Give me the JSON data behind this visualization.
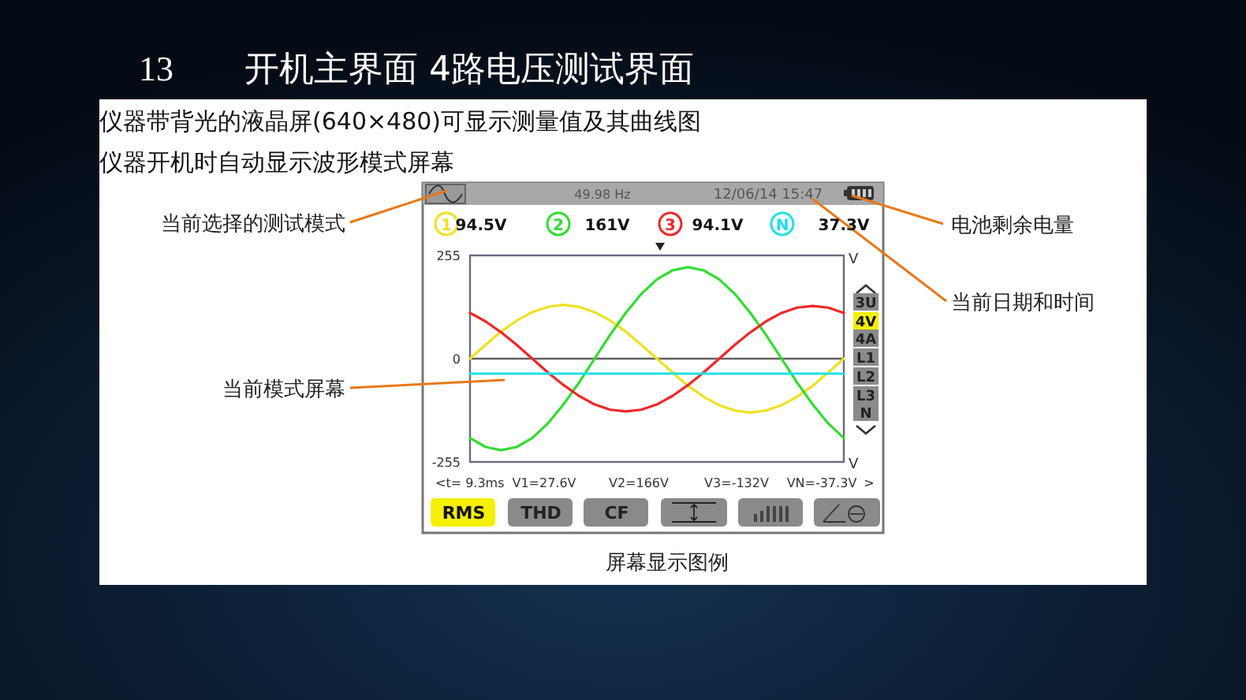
{
  "chart_data": {
    "type": "line",
    "title": "开机主界面 4路电压测试界面",
    "subtitle": "仪器带背光的液晶屏(640×480)可显示测量值及其曲线图",
    "categories": [
      null,
      null,
      null,
      null,
      null,
      null,
      null,
      null,
      null,
      null,
      null,
      null,
      null,
      null,
      null,
      null,
      null,
      null,
      null,
      null,
      null,
      null,
      null,
      null,
      null
    ],
    "ylim": [
      -255,
      255
    ],
    "yticks": [
      -255,
      0,
      255
    ],
    "ylabel": "V",
    "grid": false,
    "legend": "top",
    "marker": "none",
    "line_style": "solid",
    "series": [
      {
        "name": "1",
        "color": "#f0e020",
        "values": [
          0,
          34,
          67,
          94,
          115,
          128,
          133,
          128,
          115,
          94,
          67,
          34,
          0,
          -34,
          -67,
          -94,
          -115,
          -128,
          -133,
          -128,
          -115,
          -94,
          -67,
          -34,
          0
        ]
      },
      {
        "name": "2",
        "color": "#30dd30",
        "values": [
          -196,
          -218,
          -226,
          -218,
          -196,
          -160,
          -113,
          -59,
          0,
          59,
          113,
          160,
          196,
          218,
          226,
          218,
          196,
          160,
          113,
          59,
          0,
          -59,
          -113,
          -160,
          -196
        ]
      },
      {
        "name": "3",
        "color": "#ee2828",
        "values": [
          113,
          92,
          65,
          34,
          0,
          -34,
          -65,
          -92,
          -113,
          -126,
          -130,
          -126,
          -113,
          -92,
          -65,
          -34,
          0,
          34,
          65,
          92,
          113,
          126,
          130,
          126,
          113
        ]
      },
      {
        "name": "N",
        "color": "#20e0e8",
        "values": [
          -37,
          -37,
          -37,
          -37,
          -37,
          -37,
          -37,
          -37,
          -37,
          -37,
          -37,
          -37,
          -37,
          -37,
          -37,
          -37,
          -37,
          -37,
          -37,
          -37,
          -37,
          -37,
          -37,
          -37,
          -37
        ]
      }
    ],
    "ref_lines": [
      {
        "axis": "y",
        "value": 0,
        "color": "#606060"
      }
    ],
    "annotations": [
      "仪器开机时自动显示波形模式屏幕",
      "49.98 Hz",
      "12/06/14 15:47",
      "94.5V",
      "161V",
      "94.1V",
      "37.3V",
      "<t= 9.3ms",
      "V1=27.6V",
      "V2=166V",
      "V3=-132V",
      "VN=-37.3V",
      ">",
      "3U",
      "4V",
      "4A",
      "L1",
      "L2",
      "L3",
      "N",
      "RMS",
      "THD",
      "CF",
      "当前选择的测试模式",
      "当前模式屏幕",
      "电池剩余电量",
      "当前日期和时间",
      "屏幕显示图例",
      "13"
    ]
  }
}
